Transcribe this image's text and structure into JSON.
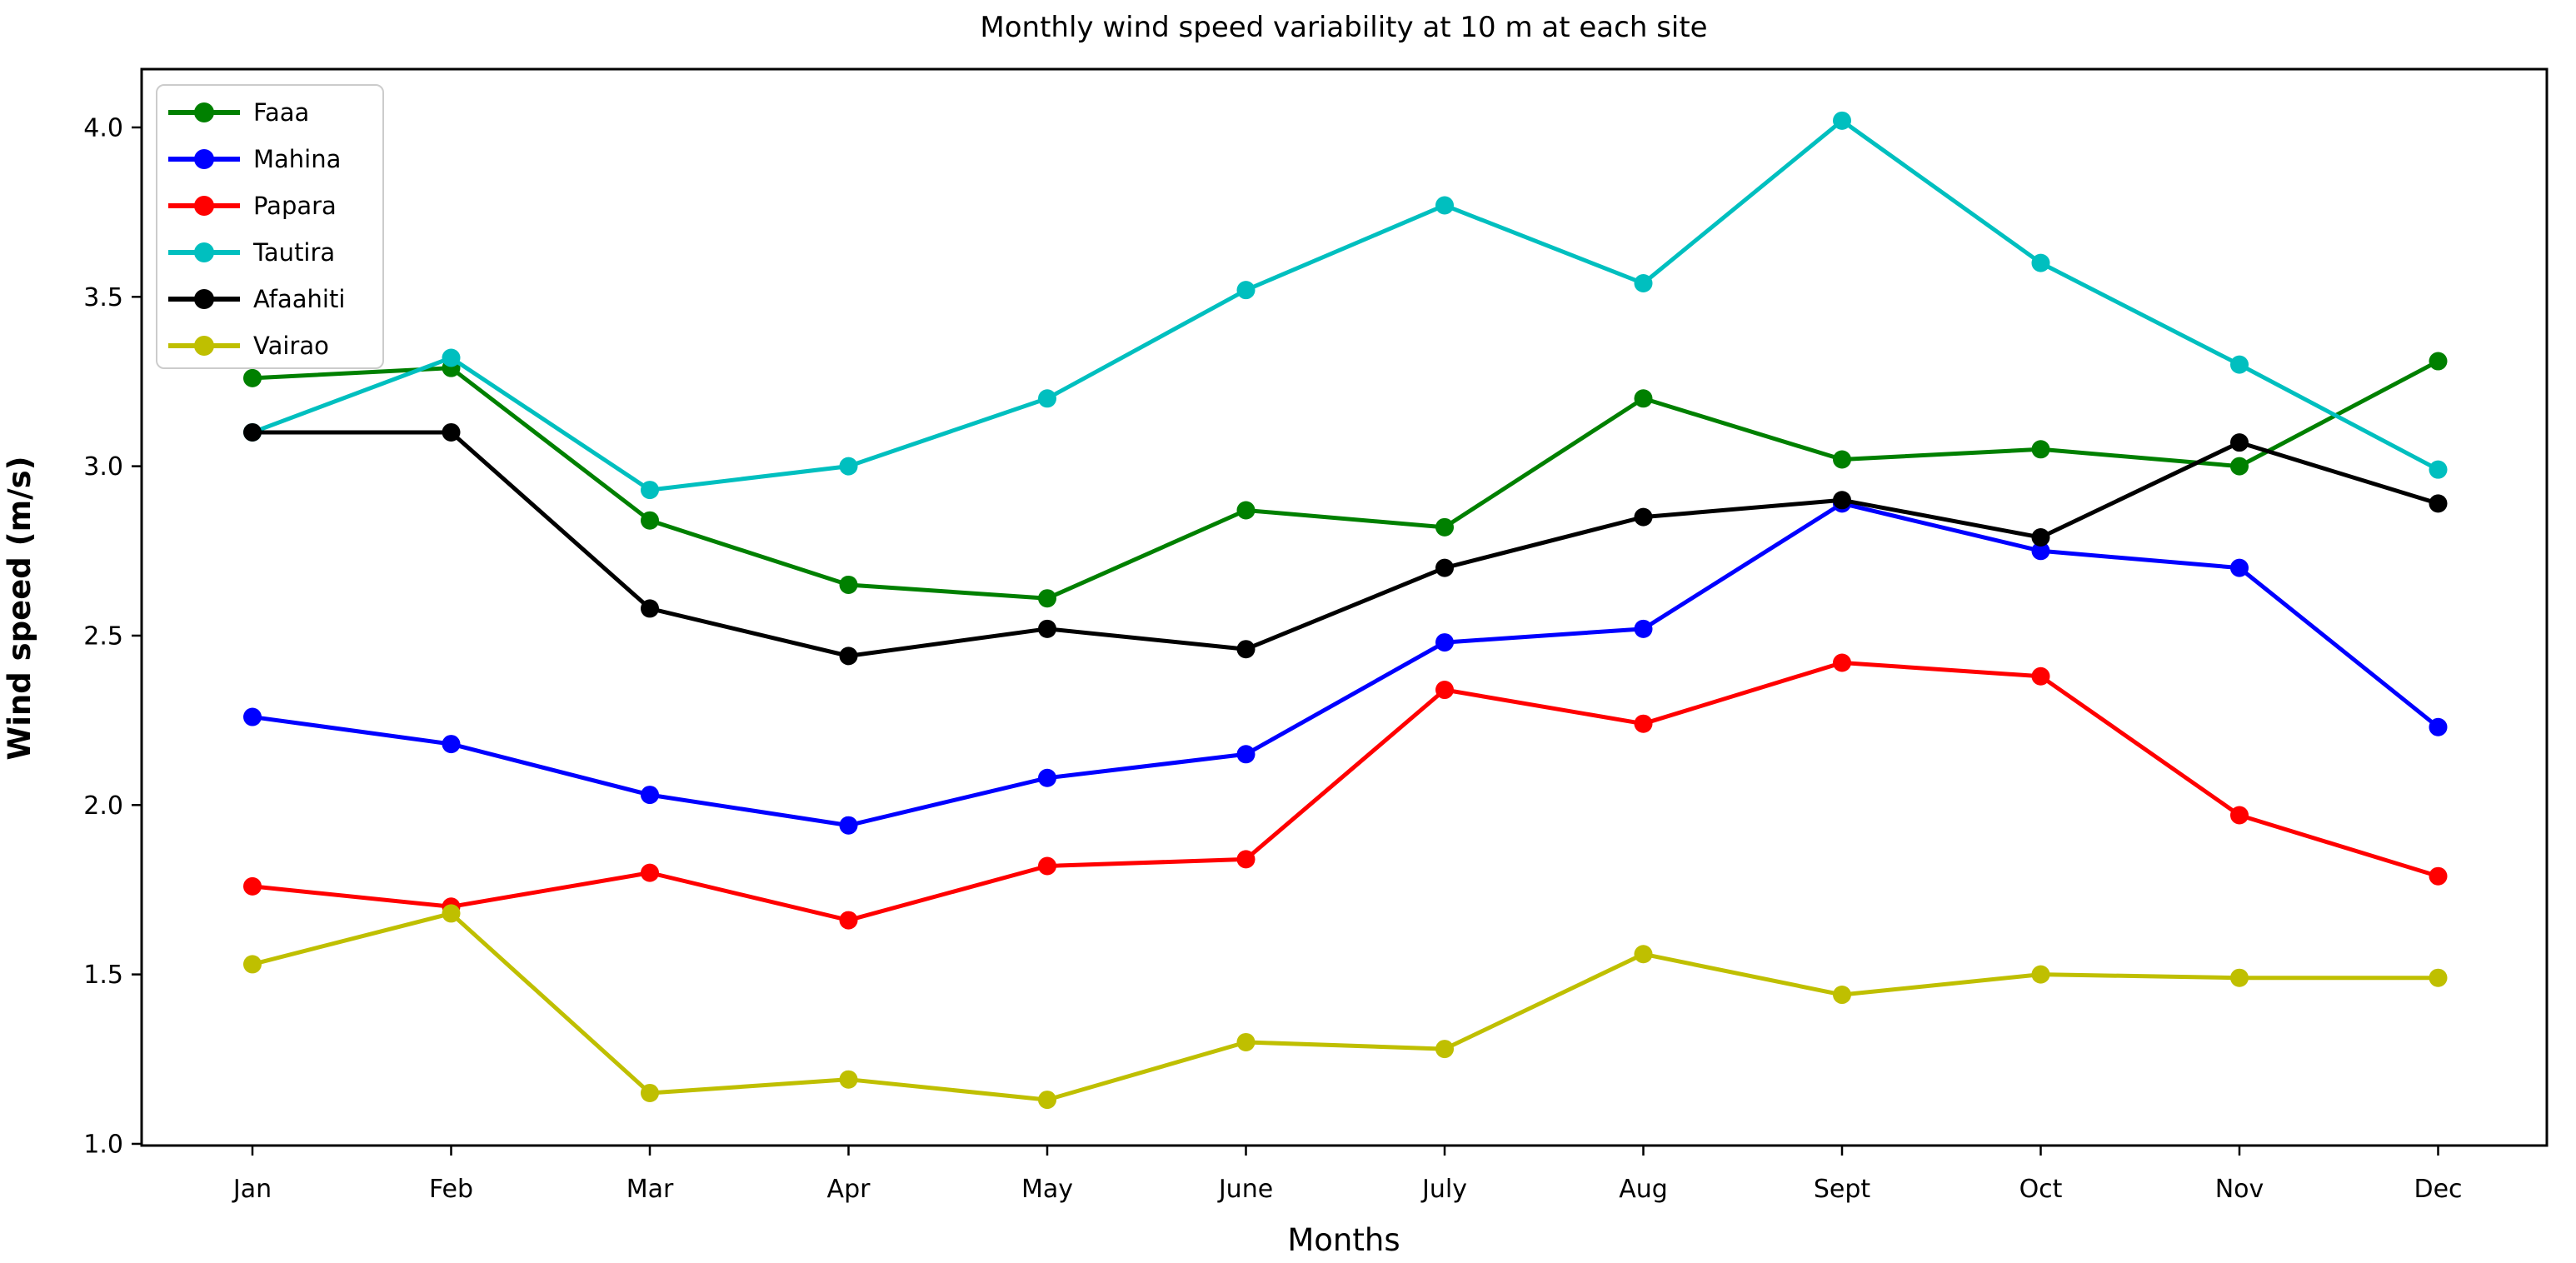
{
  "chart_data": {
    "type": "line",
    "title": "Monthly wind speed variability at 10 m at each site",
    "xlabel": "Months",
    "ylabel": "Wind speed (m/s)",
    "categories": [
      "Jan",
      "Feb",
      "Mar",
      "Apr",
      "May",
      "June",
      "July",
      "Aug",
      "Sept",
      "Oct",
      "Nov",
      "Dec"
    ],
    "series": [
      {
        "name": "Faaa",
        "color": "#008000",
        "values": [
          3.26,
          3.29,
          2.84,
          2.65,
          2.61,
          2.87,
          2.82,
          3.2,
          3.02,
          3.05,
          3.0,
          3.31
        ]
      },
      {
        "name": "Mahina",
        "color": "#0000ff",
        "values": [
          2.26,
          2.18,
          2.03,
          1.94,
          2.08,
          2.15,
          2.48,
          2.52,
          2.89,
          2.75,
          2.7,
          2.23
        ]
      },
      {
        "name": "Papara",
        "color": "#ff0000",
        "values": [
          1.76,
          1.7,
          1.8,
          1.66,
          1.82,
          1.84,
          2.34,
          2.24,
          2.42,
          2.38,
          1.97,
          1.79
        ]
      },
      {
        "name": "Tautira",
        "color": "#00bfbf",
        "values": [
          3.1,
          3.32,
          2.93,
          3.0,
          3.2,
          3.52,
          3.77,
          3.54,
          4.02,
          3.6,
          3.3,
          2.99
        ]
      },
      {
        "name": "Afaahiti",
        "color": "#000000",
        "values": [
          3.1,
          3.1,
          2.58,
          2.44,
          2.52,
          2.46,
          2.7,
          2.85,
          2.9,
          2.79,
          3.07,
          2.89
        ]
      },
      {
        "name": "Vairao",
        "color": "#bfbf00",
        "values": [
          1.53,
          1.68,
          1.15,
          1.19,
          1.13,
          1.3,
          1.28,
          1.56,
          1.44,
          1.5,
          1.49,
          1.49
        ]
      }
    ],
    "yticks": [
      1.0,
      1.5,
      2.0,
      2.5,
      3.0,
      3.5,
      4.0
    ],
    "ytick_labels": [
      "1.0",
      "1.5",
      "2.0",
      "2.5",
      "3.0",
      "3.5",
      "4.0"
    ],
    "ylim": [
      0.995,
      4.172
    ],
    "grid": false,
    "legend_position": "upper left",
    "marker": "circle",
    "axis_color": "#000000",
    "background_color": "#ffffff",
    "legend_border_color": "#cccccc"
  }
}
